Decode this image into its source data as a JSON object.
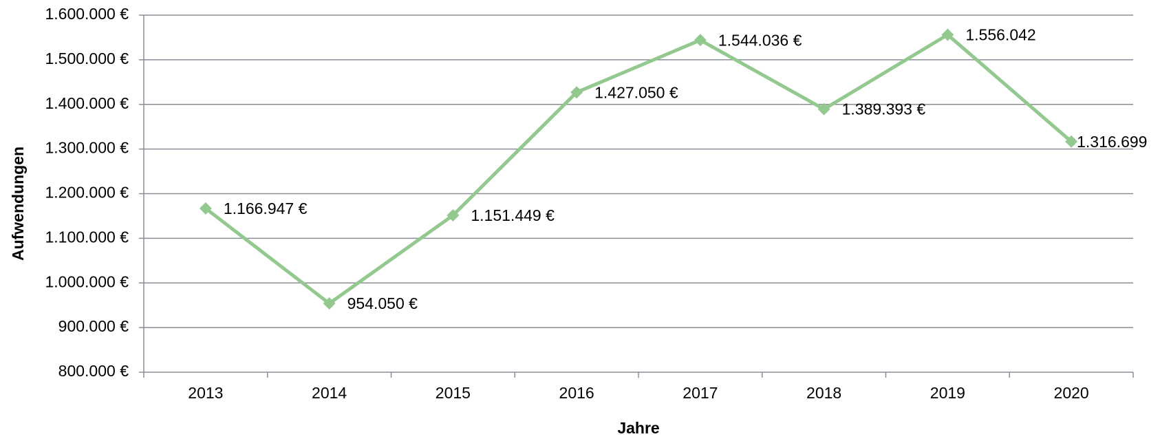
{
  "chart_data": {
    "type": "line",
    "x_label": "Jahre",
    "y_label": "Aufwendungen",
    "categories": [
      "2013",
      "2014",
      "2015",
      "2016",
      "2017",
      "2018",
      "2019",
      "2020"
    ],
    "series": [
      {
        "name": "Aufwendungen",
        "color": "#93c98f",
        "values": [
          1166947,
          954050,
          1151449,
          1427050,
          1544036,
          1389393,
          1556042,
          1316699
        ],
        "value_labels": [
          "1.166.947 €",
          "954.050 €",
          "1.151.449 €",
          "1.427.050 €",
          "1.544.036 €",
          "1.389.393 €",
          "1.556.042",
          "1.316.699"
        ]
      }
    ],
    "ylim": [
      800000,
      1600000
    ],
    "yticks": [
      {
        "value": 800000,
        "label": "800.000 €"
      },
      {
        "value": 900000,
        "label": "900.000 €"
      },
      {
        "value": 1000000,
        "label": "1.000.000 €"
      },
      {
        "value": 1100000,
        "label": "1.100.000 €"
      },
      {
        "value": 1200000,
        "label": "1.200.000 €"
      },
      {
        "value": 1300000,
        "label": "1.300.000 €"
      },
      {
        "value": 1400000,
        "label": "1.400.000 €"
      },
      {
        "value": 1500000,
        "label": "1.500.000 €"
      },
      {
        "value": 1600000,
        "label": "1.600.000 €"
      }
    ],
    "grid": true
  }
}
